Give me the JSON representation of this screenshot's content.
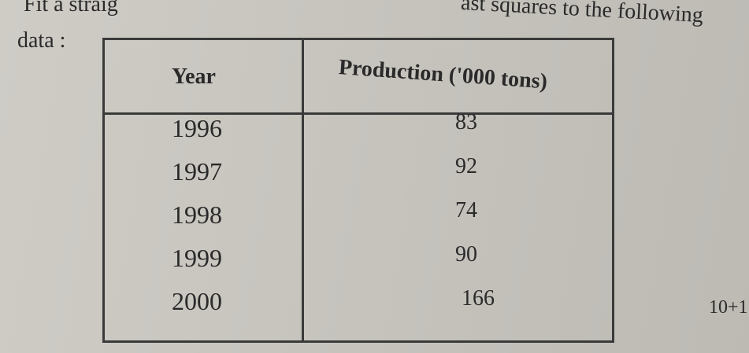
{
  "question": {
    "line1_left": "Fit a straig",
    "line1_right": "ast squares to the following",
    "line2": "data :"
  },
  "table": {
    "header": [
      "Year",
      "Production ('000 tons)"
    ],
    "rows": [
      [
        "1996",
        83
      ],
      [
        "1997",
        92
      ],
      [
        "1998",
        74
      ],
      [
        "1999",
        90
      ],
      [
        "2000",
        166
      ]
    ]
  },
  "marks": "10+1"
}
